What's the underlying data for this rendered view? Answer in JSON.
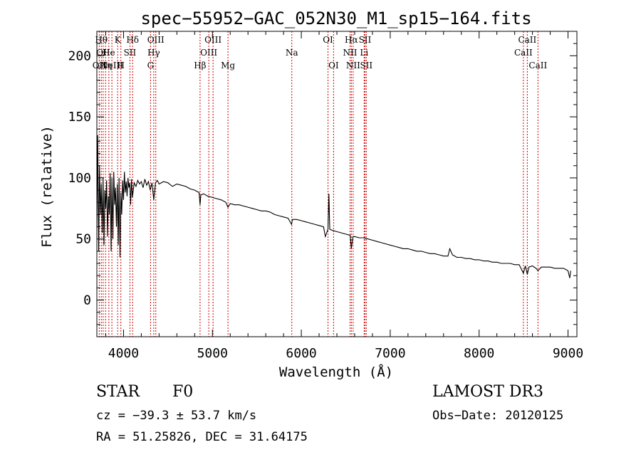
{
  "chart_data": {
    "type": "line",
    "title": "spec−55952−GAC_052N30_M1_sp15−164.fits",
    "xlabel": "Wavelength (Å)",
    "ylabel": "Flux (relative)",
    "xlim": [
      3700,
      9100
    ],
    "ylim": [
      -30,
      220
    ],
    "x_ticks": [
      4000,
      5000,
      6000,
      7000,
      8000,
      9000
    ],
    "y_ticks": [
      0,
      50,
      100,
      150,
      200
    ],
    "series": [
      {
        "name": "flux",
        "points": [
          [
            3700,
            60
          ],
          [
            3710,
            135
          ],
          [
            3720,
            40
          ],
          [
            3730,
            110
          ],
          [
            3740,
            70
          ],
          [
            3750,
            95
          ],
          [
            3760,
            55
          ],
          [
            3770,
            100
          ],
          [
            3780,
            45
          ],
          [
            3790,
            90
          ],
          [
            3800,
            75
          ],
          [
            3810,
            98
          ],
          [
            3820,
            52
          ],
          [
            3830,
            85
          ],
          [
            3840,
            70
          ],
          [
            3850,
            104
          ],
          [
            3860,
            40
          ],
          [
            3870,
            100
          ],
          [
            3880,
            50
          ],
          [
            3890,
            105
          ],
          [
            3900,
            78
          ],
          [
            3910,
            92
          ],
          [
            3920,
            60
          ],
          [
            3930,
            95
          ],
          [
            3940,
            45
          ],
          [
            3950,
            100
          ],
          [
            3960,
            35
          ],
          [
            3970,
            88
          ],
          [
            3980,
            70
          ],
          [
            3990,
            98
          ],
          [
            4000,
            82
          ],
          [
            4010,
            105
          ],
          [
            4020,
            88
          ],
          [
            4030,
            97
          ],
          [
            4040,
            85
          ],
          [
            4050,
            100
          ],
          [
            4060,
            92
          ],
          [
            4070,
            96
          ],
          [
            4080,
            78
          ],
          [
            4090,
            99
          ],
          [
            4100,
            84
          ],
          [
            4120,
            96
          ],
          [
            4140,
            93
          ],
          [
            4160,
            98
          ],
          [
            4180,
            95
          ],
          [
            4200,
            97
          ],
          [
            4220,
            92
          ],
          [
            4240,
            99
          ],
          [
            4260,
            94
          ],
          [
            4280,
            97
          ],
          [
            4300,
            90
          ],
          [
            4320,
            96
          ],
          [
            4340,
            82
          ],
          [
            4360,
            96
          ],
          [
            4380,
            98
          ],
          [
            4400,
            95
          ],
          [
            4450,
            97
          ],
          [
            4500,
            96
          ],
          [
            4550,
            93
          ],
          [
            4600,
            95
          ],
          [
            4650,
            94
          ],
          [
            4700,
            93
          ],
          [
            4750,
            91
          ],
          [
            4800,
            90
          ],
          [
            4850,
            88
          ],
          [
            4861,
            78
          ],
          [
            4870,
            86
          ],
          [
            4900,
            87
          ],
          [
            4950,
            85
          ],
          [
            5000,
            84
          ],
          [
            5050,
            83
          ],
          [
            5100,
            82
          ],
          [
            5150,
            80
          ],
          [
            5175,
            76
          ],
          [
            5200,
            79
          ],
          [
            5250,
            78
          ],
          [
            5300,
            78
          ],
          [
            5350,
            77
          ],
          [
            5400,
            76
          ],
          [
            5450,
            75
          ],
          [
            5500,
            74
          ],
          [
            5550,
            73
          ],
          [
            5600,
            73
          ],
          [
            5650,
            72
          ],
          [
            5700,
            70
          ],
          [
            5750,
            69
          ],
          [
            5800,
            68
          ],
          [
            5850,
            67
          ],
          [
            5890,
            62
          ],
          [
            5900,
            66
          ],
          [
            5950,
            66
          ],
          [
            6000,
            65
          ],
          [
            6050,
            64
          ],
          [
            6100,
            63
          ],
          [
            6150,
            62
          ],
          [
            6200,
            61
          ],
          [
            6250,
            60
          ],
          [
            6270,
            52
          ],
          [
            6300,
            58
          ],
          [
            6310,
            87
          ],
          [
            6320,
            58
          ],
          [
            6350,
            57
          ],
          [
            6400,
            56
          ],
          [
            6450,
            55
          ],
          [
            6500,
            54
          ],
          [
            6550,
            53
          ],
          [
            6563,
            42
          ],
          [
            6580,
            52
          ],
          [
            6600,
            52
          ],
          [
            6650,
            51
          ],
          [
            6700,
            51
          ],
          [
            6750,
            50
          ],
          [
            6800,
            49
          ],
          [
            6850,
            48
          ],
          [
            6900,
            47
          ],
          [
            6950,
            46
          ],
          [
            7000,
            45
          ],
          [
            7050,
            44
          ],
          [
            7100,
            43
          ],
          [
            7150,
            42
          ],
          [
            7200,
            42
          ],
          [
            7250,
            41
          ],
          [
            7300,
            40
          ],
          [
            7350,
            40
          ],
          [
            7400,
            39
          ],
          [
            7450,
            38
          ],
          [
            7500,
            38
          ],
          [
            7550,
            37
          ],
          [
            7600,
            36
          ],
          [
            7650,
            36
          ],
          [
            7670,
            42
          ],
          [
            7700,
            37
          ],
          [
            7750,
            35
          ],
          [
            7800,
            35
          ],
          [
            7850,
            34
          ],
          [
            7900,
            34
          ],
          [
            7950,
            33
          ],
          [
            8000,
            33
          ],
          [
            8050,
            32
          ],
          [
            8100,
            32
          ],
          [
            8150,
            31
          ],
          [
            8200,
            31
          ],
          [
            8250,
            30
          ],
          [
            8300,
            30
          ],
          [
            8350,
            30
          ],
          [
            8400,
            29
          ],
          [
            8450,
            29
          ],
          [
            8498,
            22
          ],
          [
            8520,
            28
          ],
          [
            8542,
            21
          ],
          [
            8560,
            27
          ],
          [
            8600,
            28
          ],
          [
            8640,
            26
          ],
          [
            8662,
            24
          ],
          [
            8700,
            27
          ],
          [
            8750,
            27
          ],
          [
            8800,
            27
          ],
          [
            8850,
            26
          ],
          [
            8900,
            26
          ],
          [
            8950,
            26
          ],
          [
            9000,
            24
          ],
          [
            9020,
            18
          ],
          [
            9030,
            24
          ]
        ]
      }
    ],
    "line_markers": [
      {
        "wavelength": 3727,
        "labels": [
          "OII"
        ],
        "row": 2
      },
      {
        "wavelength": 3750,
        "labels": [
          "Hθ"
        ],
        "row": 0
      },
      {
        "wavelength": 3771,
        "labels": [
          "OII"
        ],
        "row": 1
      },
      {
        "wavelength": 3798,
        "labels": [
          "Hη"
        ],
        "row": 2
      },
      {
        "wavelength": 3835,
        "labels": [
          "He"
        ],
        "row": 1
      },
      {
        "wavelength": 3869,
        "labels": [
          "NeIII"
        ],
        "row": 2
      },
      {
        "wavelength": 3934,
        "labels": [
          "K"
        ],
        "row": 0
      },
      {
        "wavelength": 3970,
        "labels": [
          "H"
        ],
        "row": 2
      },
      {
        "wavelength": 4072,
        "labels": [
          "SII"
        ],
        "row": 1
      },
      {
        "wavelength": 4102,
        "labels": [
          "Hδ"
        ],
        "row": 0
      },
      {
        "wavelength": 4304,
        "labels": [
          "G"
        ],
        "row": 2
      },
      {
        "wavelength": 4340,
        "labels": [
          "Hγ"
        ],
        "row": 1
      },
      {
        "wavelength": 4363,
        "labels": [
          "OIII"
        ],
        "row": 0
      },
      {
        "wavelength": 4861,
        "labels": [
          "Hβ"
        ],
        "row": 2
      },
      {
        "wavelength": 4959,
        "labels": [
          "OIII"
        ],
        "row": 1
      },
      {
        "wavelength": 5007,
        "labels": [
          "OIII"
        ],
        "row": 0
      },
      {
        "wavelength": 5175,
        "labels": [
          "Mg"
        ],
        "row": 2
      },
      {
        "wavelength": 5893,
        "labels": [
          "Na"
        ],
        "row": 1
      },
      {
        "wavelength": 6300,
        "labels": [
          "OI"
        ],
        "row": 0
      },
      {
        "wavelength": 6363,
        "labels": [
          "OI"
        ],
        "row": 2
      },
      {
        "wavelength": 6548,
        "labels": [
          "NII"
        ],
        "row": 1
      },
      {
        "wavelength": 6563,
        "labels": [
          "Hα"
        ],
        "row": 0
      },
      {
        "wavelength": 6583,
        "labels": [
          "NII"
        ],
        "row": 2
      },
      {
        "wavelength": 6707,
        "labels": [
          "Li"
        ],
        "row": 1
      },
      {
        "wavelength": 6716,
        "labels": [
          "SII"
        ],
        "row": 0
      },
      {
        "wavelength": 6731,
        "labels": [
          "SII"
        ],
        "row": 2
      },
      {
        "wavelength": 8498,
        "labels": [
          "CaII"
        ],
        "row": 1
      },
      {
        "wavelength": 8542,
        "labels": [
          "CaII"
        ],
        "row": 0
      },
      {
        "wavelength": 8662,
        "labels": [
          "CaII"
        ],
        "row": 2
      }
    ],
    "colors": {
      "spectrum": "#000000",
      "markers": "#cc0000",
      "axes": "#000000"
    },
    "grid": false
  },
  "info": {
    "class": "STAR",
    "subclass": "F0",
    "survey": "LAMOST DR3",
    "cz": "cz = −39.3 ± 53.7 km/s",
    "obs_date": "Obs−Date: 20120125",
    "radec": "RA =  51.25826, DEC =  31.64175"
  }
}
